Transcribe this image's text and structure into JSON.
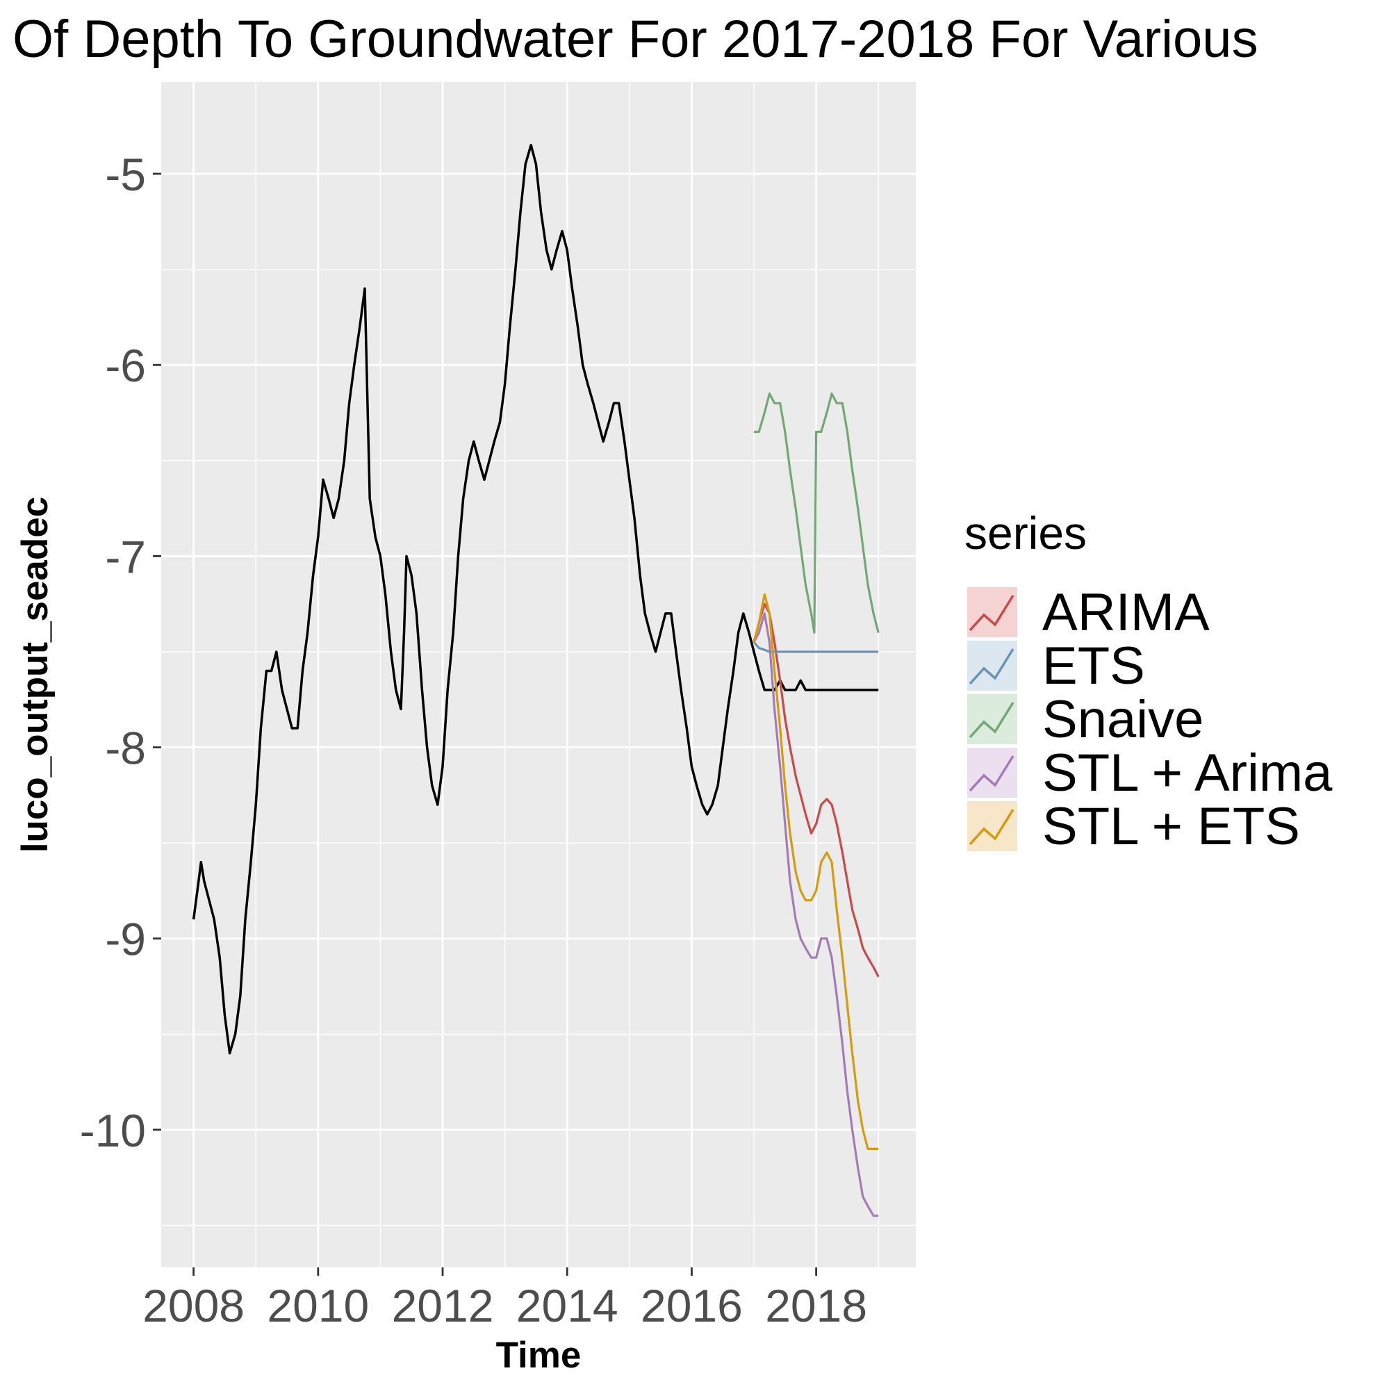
{
  "chart_data": {
    "type": "line",
    "title": "Of Depth To Groundwater For 2017-2018 For Various",
    "xlabel": "Time",
    "ylabel": "luco_output_seadec",
    "xlim": [
      2007.48,
      2019.6
    ],
    "ylim": [
      -10.72,
      -4.52
    ],
    "x_ticks": [
      2008,
      2010,
      2012,
      2014,
      2016,
      2018
    ],
    "x_tick_labels": [
      "2008",
      "2010",
      "2012",
      "2014",
      "2016",
      "2018"
    ],
    "y_ticks": [
      -5,
      -6,
      -7,
      -8,
      -9,
      -10
    ],
    "y_tick_labels": [
      "-5",
      "-6",
      "-7",
      "-8",
      "-9",
      "-10"
    ],
    "grid": true,
    "legend": {
      "title": "series",
      "position": "right",
      "entries": [
        "ARIMA",
        "ETS",
        "Snaive",
        "STL + Arima",
        "STL + ETS"
      ]
    },
    "observed": {
      "color": "#000000",
      "x": [
        2008.0,
        2008.08,
        2008.12,
        2008.17,
        2008.25,
        2008.33,
        2008.42,
        2008.5,
        2008.58,
        2008.67,
        2008.75,
        2008.83,
        2008.92,
        2009.0,
        2009.08,
        2009.17,
        2009.25,
        2009.33,
        2009.42,
        2009.5,
        2009.58,
        2009.67,
        2009.75,
        2009.83,
        2009.92,
        2010.0,
        2010.08,
        2010.17,
        2010.25,
        2010.33,
        2010.42,
        2010.5,
        2010.58,
        2010.67,
        2010.75,
        2010.83,
        2010.92,
        2011.0,
        2011.08,
        2011.17,
        2011.25,
        2011.33,
        2011.38,
        2011.42,
        2011.5,
        2011.58,
        2011.67,
        2011.75,
        2011.83,
        2011.92,
        2012.0,
        2012.08,
        2012.17,
        2012.25,
        2012.33,
        2012.42,
        2012.5,
        2012.58,
        2012.67,
        2012.75,
        2012.83,
        2012.92,
        2013.0,
        2013.08,
        2013.17,
        2013.25,
        2013.33,
        2013.42,
        2013.5,
        2013.58,
        2013.67,
        2013.75,
        2013.83,
        2013.92,
        2014.0,
        2014.08,
        2014.17,
        2014.25,
        2014.33,
        2014.42,
        2014.5,
        2014.58,
        2014.67,
        2014.75,
        2014.83,
        2014.92,
        2015.0,
        2015.08,
        2015.17,
        2015.25,
        2015.33,
        2015.42,
        2015.5,
        2015.58,
        2015.67,
        2015.75,
        2015.83,
        2015.92,
        2016.0,
        2016.08,
        2016.17,
        2016.25,
        2016.33,
        2016.42,
        2016.5,
        2016.58,
        2016.67,
        2016.75,
        2016.83,
        2016.92,
        2017.0,
        2017.08,
        2017.17,
        2017.25,
        2017.33,
        2017.42,
        2017.5,
        2017.58,
        2017.67,
        2017.75,
        2017.83,
        2017.92,
        2018.0,
        2018.08,
        2018.17,
        2018.25,
        2018.33,
        2018.42,
        2018.5,
        2018.58,
        2018.67,
        2018.75,
        2018.83,
        2018.92,
        2019.0
      ],
      "y": [
        -8.9,
        -8.7,
        -8.6,
        -8.7,
        -8.8,
        -8.9,
        -9.1,
        -9.4,
        -9.6,
        -9.5,
        -9.3,
        -8.9,
        -8.6,
        -8.3,
        -7.9,
        -7.6,
        -7.6,
        -7.5,
        -7.7,
        -7.8,
        -7.9,
        -7.9,
        -7.6,
        -7.4,
        -7.1,
        -6.9,
        -6.6,
        -6.7,
        -6.8,
        -6.7,
        -6.5,
        -6.2,
        -6.0,
        -5.8,
        -5.6,
        -6.7,
        -6.9,
        -7.0,
        -7.2,
        -7.5,
        -7.7,
        -7.8,
        -7.4,
        -7.0,
        -7.1,
        -7.3,
        -7.7,
        -8.0,
        -8.2,
        -8.3,
        -8.1,
        -7.7,
        -7.4,
        -7.0,
        -6.7,
        -6.5,
        -6.4,
        -6.5,
        -6.6,
        -6.5,
        -6.4,
        -6.3,
        -6.1,
        -5.8,
        -5.5,
        -5.2,
        -4.95,
        -4.85,
        -4.95,
        -5.2,
        -5.4,
        -5.5,
        -5.4,
        -5.3,
        -5.4,
        -5.6,
        -5.8,
        -6.0,
        -6.1,
        -6.2,
        -6.3,
        -6.4,
        -6.3,
        -6.2,
        -6.2,
        -6.4,
        -6.6,
        -6.8,
        -7.1,
        -7.3,
        -7.4,
        -7.5,
        -7.4,
        -7.3,
        -7.3,
        -7.5,
        -7.7,
        -7.9,
        -8.1,
        -8.2,
        -8.3,
        -8.35,
        -8.3,
        -8.2,
        -8.0,
        -7.8,
        -7.6,
        -7.4,
        -7.3,
        -7.4,
        -7.5,
        -7.6,
        -7.7,
        -7.7,
        -7.7,
        -7.65,
        -7.7,
        -7.7,
        -7.7,
        -7.65,
        -7.7,
        -7.7,
        -7.7,
        -7.7,
        -7.7,
        -7.7,
        -7.7,
        -7.7,
        -7.7,
        -7.7,
        -7.7,
        -7.7,
        -7.7,
        -7.7,
        -7.7
      ],
      "note_series": "Observed"
    },
    "series": [
      {
        "name": "ARIMA",
        "color": "#c94a4a",
        "x": [
          2017.0,
          2017.08,
          2017.17,
          2017.25,
          2017.33,
          2017.42,
          2017.5,
          2017.58,
          2017.67,
          2017.75,
          2017.83,
          2017.92,
          2018.0,
          2018.08,
          2018.17,
          2018.25,
          2018.33,
          2018.42,
          2018.5,
          2018.58,
          2018.67,
          2018.75,
          2018.83,
          2018.92,
          2019.0
        ],
        "y": [
          -7.45,
          -7.35,
          -7.25,
          -7.3,
          -7.45,
          -7.65,
          -7.85,
          -8.0,
          -8.15,
          -8.25,
          -8.35,
          -8.45,
          -8.4,
          -8.3,
          -8.27,
          -8.3,
          -8.4,
          -8.55,
          -8.7,
          -8.85,
          -8.95,
          -9.05,
          -9.1,
          -9.15,
          -9.2
        ]
      },
      {
        "name": "ETS",
        "color": "#6a93b5",
        "x": [
          2017.0,
          2017.08,
          2017.17,
          2017.25,
          2017.5,
          2017.75,
          2018.0,
          2018.25,
          2018.5,
          2018.75,
          2019.0
        ],
        "y": [
          -7.45,
          -7.48,
          -7.49,
          -7.5,
          -7.5,
          -7.5,
          -7.5,
          -7.5,
          -7.5,
          -7.5,
          -7.5
        ]
      },
      {
        "name": "Snaive",
        "color": "#72a874",
        "x": [
          2017.0,
          2017.08,
          2017.17,
          2017.25,
          2017.33,
          2017.42,
          2017.5,
          2017.58,
          2017.67,
          2017.75,
          2017.83,
          2017.92,
          2017.97,
          2018.0,
          2018.08,
          2018.17,
          2018.25,
          2018.33,
          2018.42,
          2018.5,
          2018.58,
          2018.67,
          2018.75,
          2018.83,
          2018.92,
          2019.0
        ],
        "y": [
          -6.35,
          -6.35,
          -6.25,
          -6.15,
          -6.2,
          -6.2,
          -6.35,
          -6.55,
          -6.75,
          -6.95,
          -7.15,
          -7.3,
          -7.4,
          -6.35,
          -6.35,
          -6.25,
          -6.15,
          -6.2,
          -6.2,
          -6.35,
          -6.55,
          -6.75,
          -6.95,
          -7.15,
          -7.3,
          -7.4
        ]
      },
      {
        "name": "STL + Arima",
        "color": "#a37cb5",
        "x": [
          2017.0,
          2017.08,
          2017.17,
          2017.25,
          2017.33,
          2017.42,
          2017.5,
          2017.58,
          2017.67,
          2017.75,
          2017.83,
          2017.92,
          2018.0,
          2018.08,
          2018.17,
          2018.25,
          2018.33,
          2018.42,
          2018.5,
          2018.58,
          2018.67,
          2018.75,
          2018.83,
          2018.92,
          2019.0
        ],
        "y": [
          -7.45,
          -7.4,
          -7.3,
          -7.45,
          -7.8,
          -8.1,
          -8.4,
          -8.7,
          -8.9,
          -9.0,
          -9.05,
          -9.1,
          -9.1,
          -9.0,
          -9.0,
          -9.1,
          -9.3,
          -9.55,
          -9.8,
          -10.0,
          -10.2,
          -10.35,
          -10.4,
          -10.45,
          -10.45
        ]
      },
      {
        "name": "STL + ETS",
        "color": "#d39b10",
        "x": [
          2017.0,
          2017.08,
          2017.17,
          2017.25,
          2017.33,
          2017.42,
          2017.5,
          2017.58,
          2017.67,
          2017.75,
          2017.83,
          2017.92,
          2018.0,
          2018.08,
          2018.17,
          2018.25,
          2018.33,
          2018.42,
          2018.5,
          2018.58,
          2018.67,
          2018.75,
          2018.83,
          2018.92,
          2019.0
        ],
        "y": [
          -7.45,
          -7.35,
          -7.2,
          -7.3,
          -7.6,
          -7.9,
          -8.2,
          -8.45,
          -8.65,
          -8.75,
          -8.8,
          -8.8,
          -8.75,
          -8.6,
          -8.55,
          -8.6,
          -8.85,
          -9.1,
          -9.35,
          -9.6,
          -9.85,
          -10.0,
          -10.1,
          -10.1,
          -10.1
        ]
      }
    ]
  }
}
